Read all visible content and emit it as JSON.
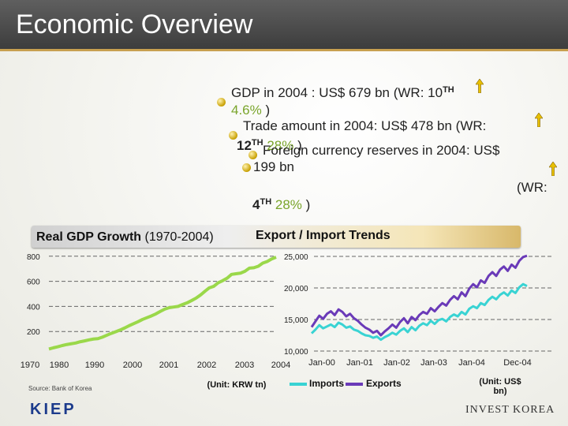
{
  "page": {
    "title": "Economic Overview",
    "gdp_line": "GDP in 2004 : US$ 679 bn (WR: 10",
    "gdp_rank_sup": "TH",
    "gdp_growth": "4.6%",
    "gdp_close": ")",
    "trade_line": "Trade amount in 2004: US$ 478 bn (WR:",
    "trade_rank": "12",
    "trade_rank_sup": "TH",
    "trade_growth": "28%",
    "trade_close": ")",
    "fx_line": "Foreign currency reserves in 2004: US$",
    "fx_amount": "199 bn",
    "fx_wr": "(WR:",
    "fx_rank": "4",
    "fx_rank_sup": "TH",
    "fx_growth": "28%",
    "fx_close": ")",
    "gdp_chart_title": "Real GDP Growth",
    "gdp_chart_period": "(1970-2004)",
    "trade_chart_title": "Export / Import Trends",
    "source": "Source: Bank of Korea",
    "gdp_unit": "(Unit: KRW tn)",
    "trade_unit": "(Unit: US$ bn)",
    "logo_left": "KIEP",
    "logo_right": "INVEST KOREA",
    "colors": {
      "green": "#7aa52b",
      "gdp_line": "#9ad84a",
      "imports": "#39d3d3",
      "exports": "#6a3ab8",
      "title_bar": "#4a4a4a"
    }
  },
  "chart_data": [
    {
      "type": "line",
      "title": "Real GDP Growth (1970-2004)",
      "x_ticks": [
        "1970",
        "1980",
        "1990",
        "2000",
        "2001",
        "2002",
        "2003",
        "2004"
      ],
      "y_ticks": [
        200,
        400,
        600,
        800
      ],
      "ylim": [
        0,
        830
      ],
      "series": [
        {
          "values": [
            60,
            70,
            78,
            88,
            96,
            102,
            108,
            118,
            125,
            133,
            140,
            143,
            155,
            170,
            185,
            198,
            212,
            228,
            246,
            262,
            278,
            296,
            310,
            324,
            340,
            360,
            378,
            390,
            395,
            400,
            415,
            428,
            446,
            465,
            490,
            520,
            548,
            560,
            588,
            605,
            625,
            655,
            660,
            665,
            680,
            705,
            708,
            720,
            745,
            758,
            778,
            792
          ]
        }
      ]
    },
    {
      "type": "line",
      "title": "Export / Import Trends",
      "x_ticks": [
        "Jan-00",
        "Jan-01",
        "Jan-02",
        "Jan-03",
        "Jan-04",
        "Dec-04"
      ],
      "y_ticks": [
        "10,000",
        "15,000",
        "20,000",
        "25,000"
      ],
      "ylim": [
        10000,
        25000
      ],
      "legend": "bottom",
      "series": [
        {
          "name": "Imports",
          "values": [
            12800,
            13400,
            14100,
            13600,
            13900,
            14200,
            13800,
            14500,
            14200,
            13700,
            13900,
            13400,
            13200,
            12800,
            12500,
            12400,
            12100,
            12300,
            11800,
            12200,
            12500,
            12900,
            12600,
            13200,
            13600,
            13000,
            13800,
            13300,
            14000,
            14400,
            14100,
            14800,
            14300,
            14900,
            15100,
            14700,
            15400,
            15800,
            15500,
            16200,
            15800,
            16700,
            17100,
            16800,
            17600,
            17300,
            18100,
            18600,
            18200,
            18900,
            19300,
            18800,
            19600,
            19200,
            20100,
            20600,
            20300
          ]
        },
        {
          "name": "Exports",
          "values": [
            13800,
            14700,
            15600,
            15100,
            15900,
            16300,
            15700,
            16600,
            16200,
            15500,
            15900,
            15200,
            14800,
            14200,
            13700,
            13400,
            12900,
            13200,
            12500,
            13100,
            13600,
            14200,
            13700,
            14600,
            15200,
            14400,
            15400,
            14900,
            15700,
            16200,
            15900,
            16800,
            16300,
            17000,
            17600,
            17200,
            18100,
            18700,
            18200,
            19300,
            18700,
            19900,
            20600,
            20100,
            21200,
            20800,
            21900,
            22500,
            21900,
            22900,
            23400,
            22700,
            23700,
            23200,
            24300,
            24900,
            25100
          ]
        }
      ]
    }
  ]
}
